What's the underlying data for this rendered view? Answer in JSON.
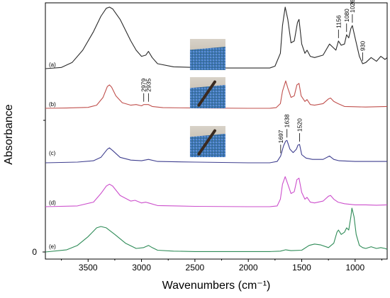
{
  "chart_data": {
    "type": "line",
    "title": "",
    "xlabel": "Wavenumbers (cm⁻¹)",
    "ylabel": "Absorbance",
    "x_reversed": true,
    "xlim": [
      3900,
      700
    ],
    "xticks": [
      "3500",
      "3000",
      "2500",
      "2000",
      "1500",
      "1000"
    ],
    "y_zero_label": "0",
    "grid": false,
    "legend": "none",
    "series": [
      {
        "name": "(a)",
        "color": "#2a2a2a",
        "points": [
          [
            3900,
            0.0
          ],
          [
            3750,
            0.02
          ],
          [
            3650,
            0.1
          ],
          [
            3550,
            0.3
          ],
          [
            3450,
            0.6
          ],
          [
            3380,
            0.85
          ],
          [
            3330,
            0.98
          ],
          [
            3300,
            1.0
          ],
          [
            3270,
            0.97
          ],
          [
            3200,
            0.8
          ],
          [
            3100,
            0.45
          ],
          [
            3050,
            0.3
          ],
          [
            3000,
            0.2
          ],
          [
            2960,
            0.22
          ],
          [
            2935,
            0.28
          ],
          [
            2900,
            0.18
          ],
          [
            2850,
            0.08
          ],
          [
            2700,
            0.03
          ],
          [
            2500,
            0.02
          ],
          [
            2200,
            0.01
          ],
          [
            1900,
            0.01
          ],
          [
            1800,
            0.01
          ],
          [
            1750,
            0.04
          ],
          [
            1700,
            0.25
          ],
          [
            1680,
            0.7
          ],
          [
            1655,
            1.0
          ],
          [
            1630,
            0.8
          ],
          [
            1600,
            0.42
          ],
          [
            1570,
            0.45
          ],
          [
            1540,
            0.75
          ],
          [
            1525,
            0.8
          ],
          [
            1500,
            0.4
          ],
          [
            1470,
            0.25
          ],
          [
            1450,
            0.3
          ],
          [
            1420,
            0.2
          ],
          [
            1380,
            0.18
          ],
          [
            1300,
            0.22
          ],
          [
            1240,
            0.4
          ],
          [
            1210,
            0.35
          ],
          [
            1180,
            0.3
          ],
          [
            1156,
            0.45
          ],
          [
            1130,
            0.38
          ],
          [
            1100,
            0.4
          ],
          [
            1080,
            0.55
          ],
          [
            1060,
            0.5
          ],
          [
            1040,
            0.65
          ],
          [
            1026,
            0.7
          ],
          [
            1000,
            0.5
          ],
          [
            960,
            0.2
          ],
          [
            930,
            0.08
          ],
          [
            900,
            0.1
          ],
          [
            850,
            0.18
          ],
          [
            800,
            0.12
          ],
          [
            760,
            0.2
          ],
          [
            720,
            0.15
          ],
          [
            700,
            0.18
          ]
        ]
      },
      {
        "name": "(b)",
        "color": "#c0504d",
        "points": [
          [
            3900,
            0.0
          ],
          [
            3700,
            0.01
          ],
          [
            3500,
            0.03
          ],
          [
            3420,
            0.1
          ],
          [
            3360,
            0.35
          ],
          [
            3320,
            0.7
          ],
          [
            3300,
            0.75
          ],
          [
            3280,
            0.68
          ],
          [
            3240,
            0.4
          ],
          [
            3180,
            0.18
          ],
          [
            3100,
            0.1
          ],
          [
            3050,
            0.12
          ],
          [
            3000,
            0.08
          ],
          [
            2979,
            0.12
          ],
          [
            2935,
            0.12
          ],
          [
            2900,
            0.06
          ],
          [
            2800,
            0.02
          ],
          [
            2500,
            0.01
          ],
          [
            2000,
            0.0
          ],
          [
            1800,
            0.0
          ],
          [
            1740,
            0.02
          ],
          [
            1700,
            0.15
          ],
          [
            1680,
            0.55
          ],
          [
            1650,
            0.88
          ],
          [
            1630,
            0.65
          ],
          [
            1600,
            0.35
          ],
          [
            1570,
            0.4
          ],
          [
            1545,
            0.75
          ],
          [
            1525,
            0.8
          ],
          [
            1505,
            0.4
          ],
          [
            1470,
            0.22
          ],
          [
            1450,
            0.28
          ],
          [
            1420,
            0.12
          ],
          [
            1380,
            0.1
          ],
          [
            1300,
            0.15
          ],
          [
            1250,
            0.3
          ],
          [
            1230,
            0.33
          ],
          [
            1200,
            0.22
          ],
          [
            1160,
            0.15
          ],
          [
            1100,
            0.06
          ],
          [
            1000,
            0.05
          ],
          [
            900,
            0.04
          ],
          [
            800,
            0.05
          ],
          [
            700,
            0.06
          ]
        ]
      },
      {
        "name": "(c)",
        "color": "#3f3f8f",
        "points": [
          [
            3900,
            0.0
          ],
          [
            3600,
            0.01
          ],
          [
            3450,
            0.03
          ],
          [
            3380,
            0.08
          ],
          [
            3320,
            0.2
          ],
          [
            3300,
            0.22
          ],
          [
            3270,
            0.18
          ],
          [
            3200,
            0.08
          ],
          [
            3100,
            0.04
          ],
          [
            3000,
            0.03
          ],
          [
            2935,
            0.05
          ],
          [
            2850,
            0.02
          ],
          [
            2500,
            0.01
          ],
          [
            2000,
            0.0
          ],
          [
            1800,
            0.0
          ],
          [
            1730,
            0.02
          ],
          [
            1697,
            0.1
          ],
          [
            1670,
            0.25
          ],
          [
            1650,
            0.32
          ],
          [
            1638,
            0.33
          ],
          [
            1610,
            0.2
          ],
          [
            1580,
            0.15
          ],
          [
            1550,
            0.2
          ],
          [
            1535,
            0.26
          ],
          [
            1520,
            0.27
          ],
          [
            1500,
            0.12
          ],
          [
            1460,
            0.07
          ],
          [
            1400,
            0.05
          ],
          [
            1300,
            0.05
          ],
          [
            1240,
            0.1
          ],
          [
            1200,
            0.05
          ],
          [
            1150,
            0.03
          ],
          [
            1000,
            0.02
          ],
          [
            700,
            0.02
          ]
        ]
      },
      {
        "name": "(d)",
        "color": "#cc4fcc",
        "points": [
          [
            3900,
            0.0
          ],
          [
            3600,
            0.02
          ],
          [
            3450,
            0.12
          ],
          [
            3380,
            0.35
          ],
          [
            3330,
            0.55
          ],
          [
            3300,
            0.6
          ],
          [
            3270,
            0.55
          ],
          [
            3200,
            0.3
          ],
          [
            3100,
            0.15
          ],
          [
            3060,
            0.17
          ],
          [
            3000,
            0.1
          ],
          [
            2960,
            0.12
          ],
          [
            2935,
            0.1
          ],
          [
            2850,
            0.03
          ],
          [
            2500,
            0.01
          ],
          [
            2000,
            0.0
          ],
          [
            1800,
            0.0
          ],
          [
            1730,
            0.02
          ],
          [
            1700,
            0.2
          ],
          [
            1680,
            0.6
          ],
          [
            1655,
            0.8
          ],
          [
            1630,
            0.6
          ],
          [
            1600,
            0.35
          ],
          [
            1570,
            0.4
          ],
          [
            1545,
            0.72
          ],
          [
            1525,
            0.76
          ],
          [
            1500,
            0.38
          ],
          [
            1470,
            0.2
          ],
          [
            1450,
            0.25
          ],
          [
            1420,
            0.12
          ],
          [
            1380,
            0.1
          ],
          [
            1300,
            0.15
          ],
          [
            1250,
            0.28
          ],
          [
            1230,
            0.3
          ],
          [
            1200,
            0.2
          ],
          [
            1160,
            0.12
          ],
          [
            1100,
            0.08
          ],
          [
            1000,
            0.05
          ],
          [
            900,
            0.05
          ],
          [
            800,
            0.04
          ],
          [
            700,
            0.05
          ]
        ]
      },
      {
        "name": "(e)",
        "color": "#2e8b57",
        "points": [
          [
            3900,
            0.0
          ],
          [
            3700,
            0.05
          ],
          [
            3600,
            0.15
          ],
          [
            3500,
            0.35
          ],
          [
            3420,
            0.55
          ],
          [
            3380,
            0.58
          ],
          [
            3330,
            0.55
          ],
          [
            3250,
            0.4
          ],
          [
            3150,
            0.2
          ],
          [
            3050,
            0.08
          ],
          [
            2980,
            0.1
          ],
          [
            2935,
            0.15
          ],
          [
            2900,
            0.1
          ],
          [
            2850,
            0.04
          ],
          [
            2700,
            0.02
          ],
          [
            2500,
            0.01
          ],
          [
            2000,
            0.01
          ],
          [
            1800,
            0.01
          ],
          [
            1700,
            0.02
          ],
          [
            1650,
            0.05
          ],
          [
            1600,
            0.03
          ],
          [
            1500,
            0.04
          ],
          [
            1430,
            0.15
          ],
          [
            1380,
            0.18
          ],
          [
            1320,
            0.16
          ],
          [
            1250,
            0.1
          ],
          [
            1200,
            0.2
          ],
          [
            1170,
            0.45
          ],
          [
            1156,
            0.5
          ],
          [
            1130,
            0.4
          ],
          [
            1100,
            0.45
          ],
          [
            1080,
            0.55
          ],
          [
            1060,
            0.5
          ],
          [
            1040,
            0.8
          ],
          [
            1030,
            1.0
          ],
          [
            1010,
            0.8
          ],
          [
            990,
            0.4
          ],
          [
            960,
            0.15
          ],
          [
            930,
            0.1
          ],
          [
            900,
            0.08
          ],
          [
            850,
            0.12
          ],
          [
            800,
            0.08
          ],
          [
            760,
            0.1
          ],
          [
            720,
            0.08
          ],
          [
            700,
            0.06
          ]
        ]
      }
    ],
    "peak_labels": [
      {
        "text": "1156",
        "x": 1156,
        "series": 0
      },
      {
        "text": "1080",
        "x": 1080,
        "series": 0
      },
      {
        "text": "1026",
        "x": 1026,
        "series": 0
      },
      {
        "text": "930",
        "x": 930,
        "series": 0
      },
      {
        "text": "2979",
        "x": 2979,
        "series": 1
      },
      {
        "text": "2935",
        "x": 2935,
        "series": 1
      },
      {
        "text": "1697",
        "x": 1697,
        "series": 2
      },
      {
        "text": "1638",
        "x": 1638,
        "series": 2
      },
      {
        "text": "1520",
        "x": 1520,
        "series": 2
      }
    ],
    "insets": [
      {
        "series": 0,
        "x": 2380
      },
      {
        "series": 1,
        "x": 2380
      },
      {
        "series": 2,
        "x": 2380
      }
    ]
  }
}
